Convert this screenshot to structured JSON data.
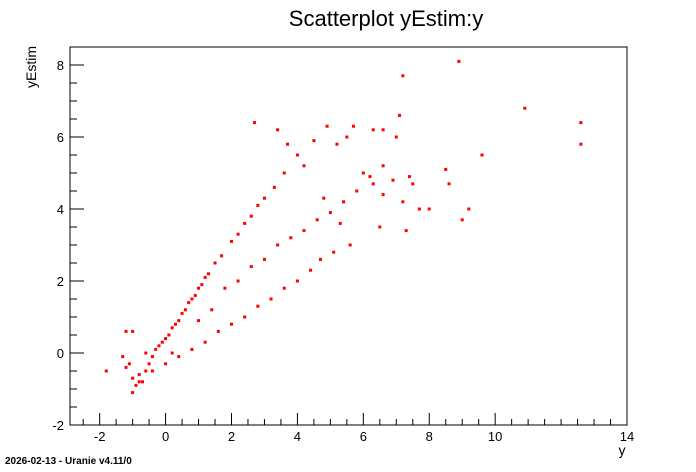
{
  "footer_text": "2026-02-13 - Uranie v4.11/0",
  "chart_data": {
    "type": "scatter",
    "title": "Scatterplot yEstim:y",
    "xlabel": "y",
    "ylabel": "yEstim",
    "xlim": [
      -2.9,
      14.0
    ],
    "ylim": [
      -2.0,
      8.5
    ],
    "xticks": [
      -2,
      0,
      2,
      4,
      6,
      8,
      10,
      14
    ],
    "yticks": [
      -2,
      0,
      2,
      4,
      6,
      8
    ],
    "marker_color": "#ff0000",
    "grid": false,
    "points": [
      [
        -1.8,
        -0.5
      ],
      [
        -1.3,
        -0.1
      ],
      [
        -1.2,
        0.6
      ],
      [
        -1.0,
        0.6
      ],
      [
        -1.1,
        -0.3
      ],
      [
        -1.0,
        -0.7
      ],
      [
        -0.9,
        -0.9
      ],
      [
        -1.0,
        -1.1
      ],
      [
        -0.8,
        -0.6
      ],
      [
        -0.7,
        -0.8
      ],
      [
        -0.6,
        -0.5
      ],
      [
        -0.5,
        -0.3
      ],
      [
        -0.4,
        -0.1
      ],
      [
        -0.3,
        0.1
      ],
      [
        -0.2,
        0.2
      ],
      [
        -0.1,
        0.3
      ],
      [
        0.0,
        0.4
      ],
      [
        0.1,
        0.5
      ],
      [
        0.2,
        0.7
      ],
      [
        0.3,
        0.8
      ],
      [
        0.4,
        0.9
      ],
      [
        0.5,
        1.1
      ],
      [
        0.6,
        1.2
      ],
      [
        0.7,
        1.4
      ],
      [
        0.8,
        1.5
      ],
      [
        0.9,
        1.6
      ],
      [
        1.0,
        1.8
      ],
      [
        1.1,
        1.9
      ],
      [
        1.2,
        2.1
      ],
      [
        1.3,
        2.2
      ],
      [
        1.5,
        2.5
      ],
      [
        1.7,
        2.7
      ],
      [
        2.0,
        3.1
      ],
      [
        2.2,
        3.3
      ],
      [
        2.4,
        3.6
      ],
      [
        2.6,
        3.8
      ],
      [
        2.8,
        4.1
      ],
      [
        3.0,
        4.3
      ],
      [
        3.3,
        4.6
      ],
      [
        3.6,
        5.0
      ],
      [
        2.7,
        6.4
      ],
      [
        3.4,
        6.2
      ],
      [
        3.7,
        5.8
      ],
      [
        4.0,
        5.5
      ],
      [
        4.2,
        5.2
      ],
      [
        4.5,
        5.9
      ],
      [
        4.9,
        6.3
      ],
      [
        5.2,
        5.8
      ],
      [
        5.5,
        6.0
      ],
      [
        5.7,
        6.3
      ],
      [
        6.3,
        6.2
      ],
      [
        6.6,
        6.2
      ],
      [
        7.0,
        6.0
      ],
      [
        7.1,
        6.6
      ],
      [
        7.2,
        7.7
      ],
      [
        6.0,
        5.0
      ],
      [
        6.3,
        4.7
      ],
      [
        6.6,
        4.4
      ],
      [
        6.9,
        4.8
      ],
      [
        7.2,
        4.2
      ],
      [
        7.5,
        4.7
      ],
      [
        7.7,
        4.0
      ],
      [
        8.0,
        4.0
      ],
      [
        8.6,
        4.7
      ],
      [
        8.5,
        5.1
      ],
      [
        8.9,
        8.1
      ],
      [
        9.0,
        3.7
      ],
      [
        9.2,
        4.0
      ],
      [
        9.6,
        5.5
      ],
      [
        10.9,
        6.8
      ],
      [
        12.6,
        6.4
      ],
      [
        12.6,
        5.8
      ],
      [
        7.3,
        3.4
      ],
      [
        7.4,
        4.9
      ],
      [
        6.5,
        3.5
      ],
      [
        5.6,
        3.0
      ],
      [
        5.1,
        2.8
      ],
      [
        4.7,
        2.6
      ],
      [
        4.4,
        2.3
      ],
      [
        4.0,
        2.0
      ],
      [
        3.6,
        1.8
      ],
      [
        3.2,
        1.5
      ],
      [
        2.8,
        1.3
      ],
      [
        2.4,
        1.0
      ],
      [
        2.0,
        0.8
      ],
      [
        1.6,
        0.6
      ],
      [
        1.2,
        0.3
      ],
      [
        0.8,
        0.1
      ],
      [
        0.4,
        -0.1
      ],
      [
        0.0,
        -0.3
      ],
      [
        -0.4,
        -0.5
      ],
      [
        -0.8,
        -0.8
      ],
      [
        -1.2,
        -0.4
      ],
      [
        -0.6,
        0.0
      ],
      [
        0.2,
        0.0
      ],
      [
        1.0,
        0.9
      ],
      [
        1.4,
        1.2
      ],
      [
        1.8,
        1.8
      ],
      [
        2.2,
        2.0
      ],
      [
        2.6,
        2.4
      ],
      [
        3.0,
        2.6
      ],
      [
        3.4,
        3.0
      ],
      [
        3.8,
        3.2
      ],
      [
        4.2,
        3.4
      ],
      [
        4.6,
        3.7
      ],
      [
        5.0,
        3.9
      ],
      [
        5.4,
        4.2
      ],
      [
        5.8,
        4.5
      ],
      [
        6.2,
        4.9
      ],
      [
        6.6,
        5.2
      ],
      [
        5.3,
        3.6
      ],
      [
        4.8,
        4.3
      ]
    ]
  }
}
